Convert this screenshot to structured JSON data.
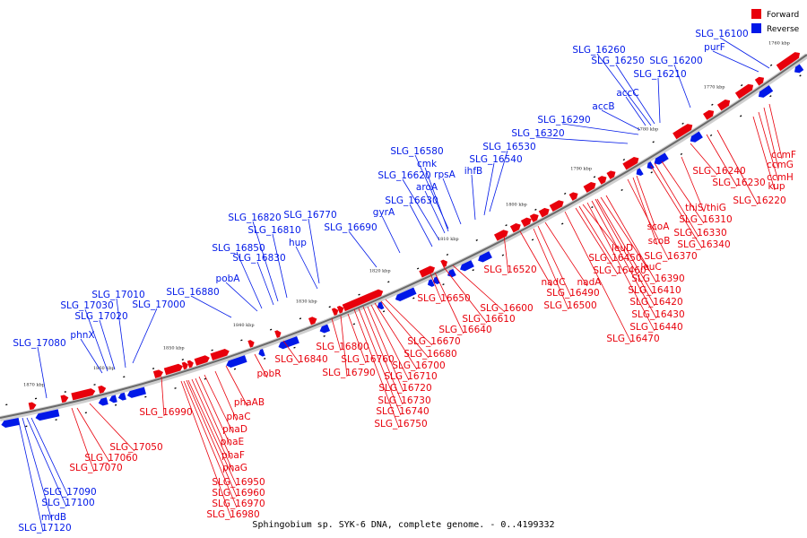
{
  "caption": "Sphingobium sp. SYK-6 DNA, complete genome. - 0..4199332",
  "legend": [
    {
      "label": "Forward",
      "color": "#e8000b"
    },
    {
      "label": "Reverse",
      "color": "#0018e8"
    }
  ],
  "colors": {
    "forward": "#e8000b",
    "reverse": "#0018e8",
    "backbone": "#888888"
  },
  "ticks": [
    "1870 kbp",
    "1860 kbp",
    "1850 kbp",
    "1840 kbp",
    "1830 kbp",
    "1820 kbp",
    "1810 kbp",
    "1800 kbp",
    "1790 kbp",
    "1780 kbp",
    "1770 kbp",
    "1760 kbp"
  ],
  "reverse_labels": [
    "SLG_17120",
    "mrdB",
    "SLG_17100",
    "SLG_17090",
    "SLG_17080",
    "phnX",
    "SLG_17030",
    "SLG_17010",
    "SLG_17020",
    "SLG_17000",
    "SLG_16880",
    "pobA",
    "SLG_16850",
    "SLG_16830",
    "SLG_16820",
    "SLG_16810",
    "hup",
    "SLG_16770",
    "SLG_16690",
    "gyrA",
    "SLG_16630",
    "SLG_16620",
    "aroA",
    "cmk",
    "SLG_16580",
    "rpsA",
    "ihfB",
    "SLG_16540",
    "SLG_16530",
    "SLG_16320",
    "SLG_16290",
    "accB",
    "accC",
    "SLG_16210",
    "SLG_16250",
    "SLG_16260",
    "SLG_16200",
    "purF",
    "SLG_16100"
  ],
  "forward_labels": [
    "SLG_17070",
    "SLG_17060",
    "SLG_17050",
    "SLG_16990",
    "SLG_16980",
    "SLG_16970",
    "SLG_16960",
    "SLG_16950",
    "phaG",
    "phaF",
    "phaE",
    "phaD",
    "phaC",
    "phaAB",
    "pobR",
    "SLG_16840",
    "SLG_16790",
    "SLG_16800",
    "SLG_16760",
    "SLG_16750",
    "SLG_16740",
    "SLG_16730",
    "SLG_16720",
    "SLG_16710",
    "SLG_16700",
    "SLG_16680",
    "SLG_16670",
    "SLG_16650",
    "SLG_16640",
    "SLG_16610",
    "SLG_16600",
    "SLG_16520",
    "nadC",
    "SLG_16500",
    "SLG_16490",
    "nadA",
    "SLG_16470",
    "SLG_16460",
    "SLG_16450",
    "leuD",
    "SLG_16440",
    "SLG_16430",
    "SLG_16420",
    "SLG_16410",
    "leuC",
    "SLG_16390",
    "SLG_16370",
    "scoB",
    "scoA",
    "SLG_16340",
    "SLG_16330",
    "SLG_16310",
    "thiS/thiG",
    "SLG_16240",
    "SLG_16230",
    "SLG_16220",
    "kup",
    "ccmH",
    "ccmG",
    "ccmF"
  ]
}
